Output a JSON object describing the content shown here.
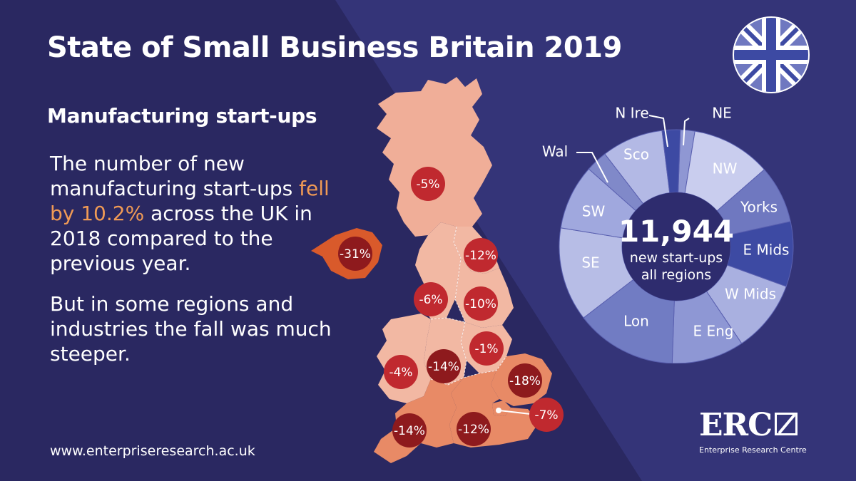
{
  "header": {
    "title": "State of Small Business Britain 2019",
    "subtitle": "Manufacturing start-ups"
  },
  "body": {
    "p1_before": "The number of new manufacturing start-ups ",
    "p1_highlight": "fell by 10.2%",
    "p1_after": " across the UK in 2018 compared to the previous year.",
    "p2": "But in some regions and industries the fall was much steeper."
  },
  "footer": {
    "url": "www.enterpriseresearch.ac.uk"
  },
  "logo": {
    "text": "ERC",
    "subtitle": "Enterprise Research Centre"
  },
  "donut_center": {
    "value": "11,944",
    "line1": "new start-ups",
    "line2": "all regions"
  },
  "colors": {
    "background": "#2a2861",
    "background_band": "#343478",
    "map_land": "#f0b09a",
    "map_land_dark": "#e07a52",
    "map_ni": "#d95a2b",
    "badge_red": "#c0292f",
    "badge_dark": "#8e1a1d",
    "accent_orange": "#f09a55"
  },
  "chart_data": [
    {
      "type": "pie",
      "variant": "donut",
      "title": "",
      "slices": [
        {
          "label": "NE",
          "value": 2.0,
          "color": "#8f97d3"
        },
        {
          "label": "NW",
          "value": 11.0,
          "color": "#c9cdee"
        },
        {
          "label": "Yorks",
          "value": 8.0,
          "color": "#6f78c0"
        },
        {
          "label": "E Mids",
          "value": 9.0,
          "color": "#3d4aa3"
        },
        {
          "label": "W Mids",
          "value": 10.0,
          "color": "#a9b0e0"
        },
        {
          "label": "E Eng",
          "value": 10.0,
          "color": "#8e97d4"
        },
        {
          "label": "Lon",
          "value": 14.0,
          "color": "#717cc3"
        },
        {
          "label": "SE",
          "value": 13.0,
          "color": "#b7bde6"
        },
        {
          "label": "SW",
          "value": 9.0,
          "color": "#a0a8de"
        },
        {
          "label": "Wal",
          "value": 3.0,
          "color": "#8089c9"
        },
        {
          "label": "Sco",
          "value": 8.5,
          "color": "#b3b9e5"
        },
        {
          "label": "N Ire",
          "value": 2.5,
          "color": "#3d4aa3"
        }
      ]
    },
    {
      "type": "other",
      "variant": "choropleth",
      "description_units": "percent change in manufacturing start-ups",
      "regions": [
        {
          "region": "Sco",
          "change": "-5%"
        },
        {
          "region": "N Ire",
          "change": "-31%"
        },
        {
          "region": "NE",
          "change": "-12%"
        },
        {
          "region": "NW",
          "change": "-6%"
        },
        {
          "region": "Yorks",
          "change": "-10%"
        },
        {
          "region": "E Mids",
          "change": "-1%"
        },
        {
          "region": "W Mids",
          "change": "-14%"
        },
        {
          "region": "Wal",
          "change": "-4%"
        },
        {
          "region": "E Eng",
          "change": "-18%"
        },
        {
          "region": "Lon",
          "change": "-7%"
        },
        {
          "region": "SE",
          "change": "-12%"
        },
        {
          "region": "SW",
          "change": "-14%"
        }
      ]
    }
  ]
}
